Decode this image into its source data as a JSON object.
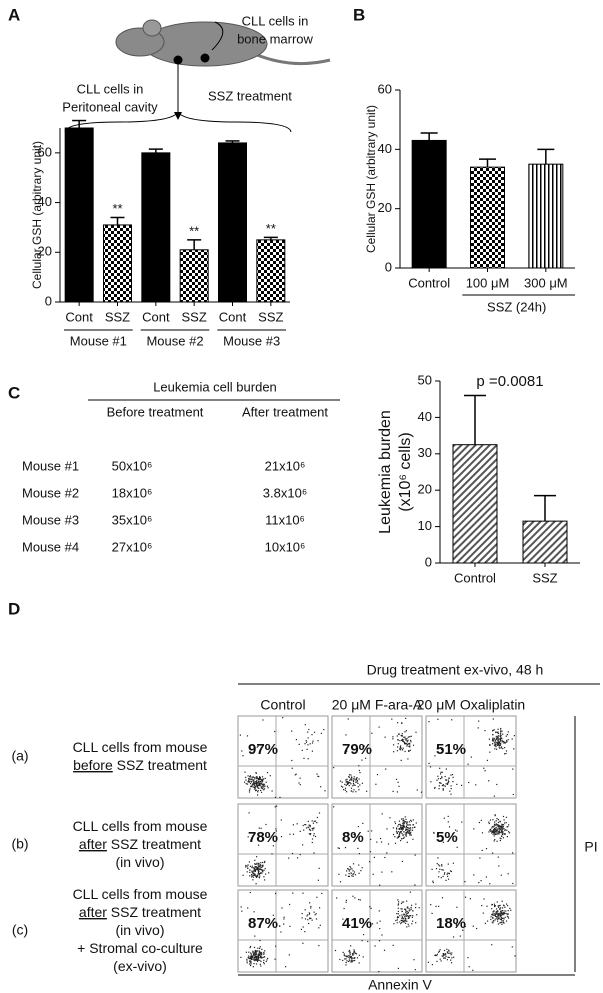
{
  "panel_labels": [
    "A",
    "B",
    "C",
    "D"
  ],
  "diagram": {
    "labels": [
      [
        "CLL cells in",
        "bone marrow"
      ],
      [
        "CLL cells in",
        "Peritoneal cavity"
      ],
      [
        "SSZ treatment"
      ]
    ]
  },
  "chart_data": [
    {
      "type": "bar",
      "ylabel": [
        "Cellular GSH (arbitrary unit)"
      ],
      "categories": [
        "Cont",
        "SSZ",
        "Cont",
        "SSZ",
        "Cont",
        "SSZ"
      ],
      "groups": [
        "Mouse #1",
        "Mouse #2",
        "Mouse #3"
      ],
      "values": [
        70,
        31,
        60,
        21,
        64,
        25
      ],
      "errors": [
        3,
        3,
        1.5,
        4,
        0.8,
        1
      ],
      "patterns": [
        "solid",
        "checker",
        "solid",
        "checker",
        "solid",
        "checker"
      ],
      "significance": [
        null,
        "**",
        null,
        "**",
        null,
        "**"
      ],
      "ylim": [
        0,
        70
      ],
      "yticks": [
        0,
        20,
        40,
        60
      ]
    },
    {
      "type": "bar",
      "ylabel": [
        "Cellular GSH (arbitrary unit)"
      ],
      "categories": [
        "Control",
        "100 μM",
        "300 μM"
      ],
      "group_label": "SSZ (24h)",
      "values": [
        43,
        34,
        35
      ],
      "errors": [
        2.5,
        2.7,
        5
      ],
      "patterns": [
        "solid",
        "checker",
        "vlines"
      ],
      "ylim": [
        0,
        60
      ],
      "yticks": [
        0,
        20,
        40,
        60
      ]
    },
    {
      "type": "bar",
      "ylabel": [
        "Leukemia burden",
        "(x10⁶ cells)"
      ],
      "categories": [
        "Control",
        "SSZ"
      ],
      "annotation": "p =0.0081",
      "values": [
        32.5,
        11.5
      ],
      "errors": [
        13.5,
        7
      ],
      "patterns": [
        "diag",
        "diag"
      ],
      "ylim": [
        0,
        50
      ],
      "yticks": [
        0,
        10,
        20,
        30,
        40,
        50
      ]
    }
  ],
  "table": {
    "title": "Leukemia cell burden",
    "columns": [
      "Before treatment",
      "After treatment"
    ],
    "rows": [
      [
        "Mouse #1",
        "50x10⁶",
        "21x10⁶"
      ],
      [
        "Mouse #2",
        "18x10⁶",
        "3.8x10⁶"
      ],
      [
        "Mouse #3",
        "35x10⁶",
        "11x10⁶"
      ],
      [
        "Mouse #4",
        "27x10⁶",
        "10x10⁶"
      ]
    ]
  },
  "flow": {
    "title": "Drug treatment ex-vivo, 48 h",
    "columns": [
      "Control",
      "20 μM F-ara-A",
      "20 μM Oxaliplatin"
    ],
    "rows": [
      {
        "label": "(a)",
        "lines": [
          [
            "CLL cells from mouse"
          ],
          [
            "before",
            " SSZ treatment"
          ]
        ],
        "percents": [
          "97%",
          "79%",
          "51%"
        ]
      },
      {
        "label": "(b)",
        "lines": [
          [
            "CLL cells from mouse"
          ],
          [
            "after",
            " SSZ treatment"
          ],
          [
            "(in vivo)"
          ]
        ],
        "percents": [
          "78%",
          "8%",
          "5%"
        ]
      },
      {
        "label": "(c)",
        "lines": [
          [
            "CLL cells from mouse"
          ],
          [
            "after",
            " SSZ treatment"
          ],
          [
            "(in vivo)"
          ],
          [
            "+  Stromal co-culture"
          ],
          [
            "(ex-vivo)"
          ]
        ],
        "percents": [
          "87%",
          "41%",
          "18%"
        ]
      }
    ],
    "x_axis": "Annexin V",
    "y_axis": "PI"
  }
}
